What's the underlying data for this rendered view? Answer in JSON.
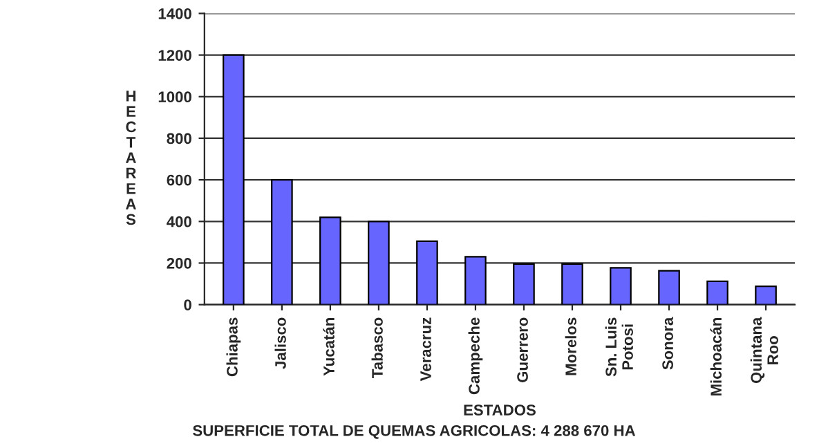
{
  "chart_data": {
    "type": "bar",
    "xlabel": "ESTADOS",
    "ylabel": "HECTAREAS",
    "categories": [
      "Chiapas",
      "Jalisco",
      "Yucatán",
      "Tabasco",
      "Veracruz",
      "Campeche",
      "Guerrero",
      "Morelos",
      "Sn. Luis\nPotosi",
      "Sonora",
      "Michoacán",
      "Quintana\nRoo"
    ],
    "values": [
      1200,
      600,
      420,
      400,
      305,
      230,
      195,
      195,
      177,
      163,
      112,
      88
    ],
    "color": "#6666ff",
    "ylim": [
      0,
      1400
    ],
    "yticks": [
      0,
      200,
      400,
      600,
      800,
      1000,
      1200,
      1400
    ],
    "grid": "y",
    "annotations": [
      "SUPERFICIE TOTAL DE QUEMAS AGRICOLAS: 4 288 670 HA"
    ]
  }
}
